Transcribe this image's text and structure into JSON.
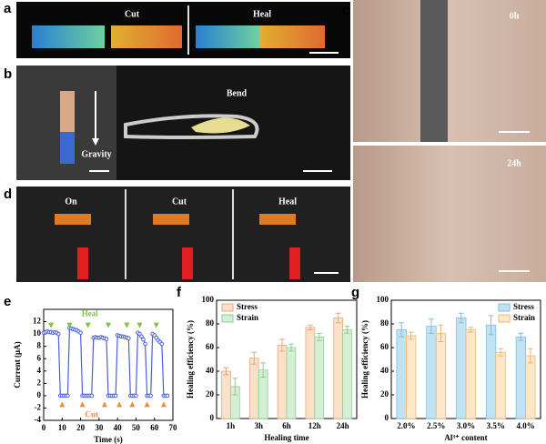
{
  "photo_panels": [
    {
      "label": "a",
      "captions": [
        "Cut",
        "Heal"
      ]
    },
    {
      "label": "b",
      "captions": [
        "Bend",
        "Gravity"
      ]
    },
    {
      "label": "c",
      "captions": [
        "0h",
        "24h"
      ]
    },
    {
      "label": "d",
      "captions": [
        "On",
        "Cut",
        "Heal"
      ]
    }
  ],
  "chart_data": [
    {
      "type": "line",
      "panel_label": "e",
      "x_label": "Time (s)",
      "y_label": "Current (μA)",
      "color": "#4a5ee8",
      "x": [
        0,
        1,
        2,
        3,
        4,
        5,
        6,
        7,
        8,
        9,
        10,
        11,
        12,
        13,
        14,
        15,
        16,
        17,
        18,
        19,
        20,
        21,
        22,
        23,
        24,
        25,
        26,
        27,
        28,
        29,
        30,
        31,
        32,
        33,
        34,
        35,
        36,
        37,
        38,
        39,
        40,
        41,
        42,
        43,
        44,
        45,
        46,
        47,
        48,
        49,
        50,
        51,
        52,
        53,
        54,
        55,
        56,
        57,
        58,
        59,
        60,
        61,
        62,
        63,
        64,
        65,
        66,
        67
      ],
      "values": [
        10.2,
        10.3,
        10.4,
        10.3,
        10.3,
        10.2,
        10.3,
        10.2,
        10.0,
        0,
        0,
        0,
        0,
        0,
        11,
        10.9,
        10.8,
        10.7,
        10.6,
        10.4,
        10.2,
        0,
        0,
        0,
        0,
        0,
        0,
        9.4,
        9.5,
        9.4,
        9.4,
        9.5,
        9.4,
        9.3,
        9.2,
        0,
        0,
        0,
        0,
        0,
        9.8,
        9.7,
        9.6,
        9.6,
        9.5,
        9.4,
        9.3,
        0,
        0,
        0,
        0,
        10.2,
        10,
        9.6,
        9.1,
        8.4,
        0,
        0,
        0,
        10,
        9.8,
        9.4,
        9.0,
        8.7,
        8.4,
        0,
        0,
        0
      ],
      "xlim": [
        0,
        70
      ],
      "xticks": [
        0,
        10,
        20,
        30,
        40,
        50,
        60,
        70
      ],
      "ylim": [
        -4,
        14
      ],
      "yticks": [
        -4,
        -2,
        0,
        2,
        4,
        6,
        8,
        10,
        12
      ],
      "annotations": [
        {
          "text": "Heal",
          "color": "#7dc242",
          "x": 25,
          "y": 13.2,
          "arrows_x": [
            4,
            14,
            24,
            35,
            45,
            52,
            61
          ],
          "arrows_y": 11.4,
          "dir": "down"
        },
        {
          "text": "Cut",
          "color": "#f08a3c",
          "x": 26,
          "y": -3.2,
          "arrows_x": [
            10,
            21,
            33,
            41,
            48,
            56,
            65
          ],
          "arrows_y": -1.4,
          "dir": "up"
        }
      ]
    },
    {
      "type": "bar",
      "panel_label": "f",
      "x_label": "Healing time",
      "y_label": "Healing efficiency (%)",
      "legend": "upper left",
      "categories": [
        "1h",
        "3h",
        "6h",
        "12h",
        "24h"
      ],
      "ylim": [
        0,
        100
      ],
      "yticks": [
        0,
        20,
        40,
        60,
        80,
        100
      ],
      "series": [
        {
          "name": "Stress",
          "color": "#fde0c8",
          "edge": "#e8a87c",
          "values": [
            40,
            51,
            62,
            77,
            85
          ],
          "errors": [
            3,
            5,
            5,
            2,
            4
          ]
        },
        {
          "name": "Strain",
          "color": "#d4efd4",
          "edge": "#8fce8f",
          "values": [
            27,
            41,
            60,
            69,
            75
          ],
          "errors": [
            7,
            6,
            3,
            3,
            3
          ]
        }
      ]
    },
    {
      "type": "bar",
      "panel_label": "g",
      "x_label": "Al³⁺ content",
      "y_label": "Healing efficiency (%)",
      "legend": "upper right",
      "categories": [
        "2.0%",
        "2.5%",
        "3.0%",
        "3.5%",
        "4.0%"
      ],
      "ylim": [
        0,
        100
      ],
      "yticks": [
        0,
        20,
        40,
        60,
        80,
        100
      ],
      "series": [
        {
          "name": "Stress",
          "color": "#bfe3f5",
          "edge": "#7fbfe0",
          "values": [
            75,
            78,
            85,
            79,
            69
          ],
          "errors": [
            6,
            6,
            4,
            8,
            3
          ]
        },
        {
          "name": "Strain",
          "color": "#fde7c8",
          "edge": "#e8b878",
          "values": [
            70,
            72,
            75,
            56,
            53
          ],
          "errors": [
            3,
            7,
            2,
            3,
            6
          ]
        }
      ]
    }
  ]
}
